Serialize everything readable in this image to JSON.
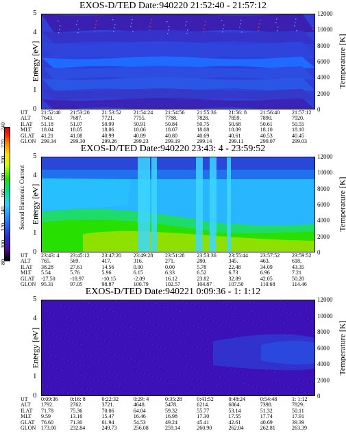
{
  "colorbar": {
    "label": "Second Harmonic Current",
    "ticks": [
      "80",
      "100",
      "120",
      "140",
      "160",
      "180",
      "200",
      "220",
      "240"
    ]
  },
  "chart_data": [
    {
      "type": "heatmap",
      "title": "EXOS-D/TED   Date:940220  21:52:40 - 21:57:12",
      "ylabel": "Energy [eV]",
      "y2label": "Temperature [K]",
      "ylim": [
        0,
        5
      ],
      "y2lim": [
        0,
        12000
      ],
      "yticks": [
        "0",
        "1",
        "2",
        "3",
        "4",
        "5"
      ],
      "y2ticks": [
        "0",
        "2000",
        "4000",
        "6000",
        "8000",
        "10000",
        "12000"
      ],
      "dominant_color": "#2f3fd8",
      "ephemeris": {
        "labels": [
          "UT",
          "ALT",
          "ILAT",
          "MLT",
          "GLAT",
          "GLON"
        ],
        "columns": [
          [
            "21:52:40",
            "7643.",
            "51.18",
            "18.04",
            "41.21",
            "299.34"
          ],
          [
            "21:53:20",
            "7687.",
            "51.07",
            "18.05",
            "41.08",
            "299.30"
          ],
          [
            "21:53:52",
            "7721.",
            "50.99",
            "18.06",
            "40.99",
            "299.26"
          ],
          [
            "21:54:24",
            "7755.",
            "50.91",
            "18.06",
            "40.89",
            "299.23"
          ],
          [
            "21:54:56",
            "7788.",
            "50.84",
            "18.07",
            "40.80",
            "299.19"
          ],
          [
            "21:55:36",
            "7828.",
            "50.75",
            "18.08",
            "40.69",
            "299.14"
          ],
          [
            "21:56: 8",
            "7859.",
            "50.68",
            "18.09",
            "40.61",
            "299.11"
          ],
          [
            "21:56:40",
            "7890.",
            "50.61",
            "18.10",
            "40.53",
            "299.07"
          ],
          [
            "21:57:12",
            "7920.",
            "50.55",
            "18.10",
            "40.45",
            "299.03"
          ]
        ]
      }
    },
    {
      "type": "heatmap",
      "title": "EXOS-D/TED   Date:940220  23:43: 4 - 23:59:52",
      "ylabel": "Energy [eV]",
      "y2label": "Temperature [K]",
      "ylim": [
        0,
        5
      ],
      "y2lim": [
        0,
        12000
      ],
      "yticks": [
        "0",
        "1",
        "2",
        "3",
        "4",
        "5"
      ],
      "y2ticks": [
        "0",
        "2000",
        "4000",
        "6000",
        "8000",
        "10000",
        "12000"
      ],
      "dominant_color": "#27b6ff",
      "ephemeris": {
        "labels": [
          "UT",
          "ALT",
          "ILAT",
          "MLT",
          "GLAT",
          "GLON"
        ],
        "columns": [
          [
            "23:43: 4",
            "765.",
            "38.28",
            "5.54",
            "-27.50",
            "95.31"
          ],
          [
            "23:45:12",
            "569.",
            "27.61",
            "5.76",
            "-18.97",
            "97.05"
          ],
          [
            "23:47:20",
            "417.",
            "14.56",
            "5.96",
            "-10.15",
            "98.87"
          ],
          [
            "23:49:28",
            "316.",
            "0.00",
            "6.15",
            "-2.09",
            "100.79"
          ],
          [
            "23:51:28",
            "271.",
            "0.00",
            "6.33",
            "16.12",
            "102.57"
          ],
          [
            "23:53:36",
            "280.",
            "5.78",
            "6.52",
            "23.82",
            "104.87"
          ],
          [
            "23:55:44",
            "345.",
            "22.48",
            "6.73",
            "32.89",
            "107.50"
          ],
          [
            "23:57:52",
            "463.",
            "34.09",
            "6.96",
            "42.05",
            "110.68"
          ],
          [
            "23:59:52",
            "618.",
            "43.35",
            "7.21",
            "50.20",
            "114.46"
          ]
        ]
      }
    },
    {
      "type": "heatmap",
      "title": "EXOS-D/TED   Date:940221  0:09:36 - 1: 1:12",
      "ylabel": "Energy [eV]",
      "y2label": "Temperature [K]",
      "ylim": [
        0,
        5
      ],
      "y2lim": [
        0,
        12000
      ],
      "yticks": [
        "0",
        "1",
        "2",
        "3",
        "4",
        "5"
      ],
      "y2ticks": [
        "0",
        "2000",
        "4000",
        "6000",
        "8000",
        "10000",
        "12000"
      ],
      "dominant_color": "#3c12b8",
      "ephemeris": {
        "labels": [
          "UT",
          "ALT",
          "ILAT",
          "MLT",
          "GLAT",
          "GLON"
        ],
        "columns": [
          [
            "0:09:36",
            "1792.",
            "71.78",
            "9.59",
            "76.60",
            "173.00"
          ],
          [
            "0:16: 8",
            "2762.",
            "75.36",
            "13.16",
            "71.30",
            "232.84"
          ],
          [
            "0:22:32",
            "3721.",
            "70.06",
            "15.47",
            "61.94",
            "249.73"
          ],
          [
            "0:29: 4",
            "4648.",
            "64.04",
            "16.46",
            "54.53",
            "256.08"
          ],
          [
            "0:35:28",
            "5478.",
            "59.32",
            "16.98",
            "49.24",
            "259.14"
          ],
          [
            "0:41:52",
            "6214.",
            "55.77",
            "17.30",
            "45.41",
            "260.90"
          ],
          [
            "0:48:24",
            "6864.",
            "53.14",
            "17.55",
            "42.61",
            "262.04"
          ],
          [
            "0:54:48",
            "7398.",
            "51.32",
            "17.74",
            "40.69",
            "262.81"
          ],
          [
            "1: 1:12",
            "7829.",
            "50.11",
            "17.91",
            "39.39",
            "263.39"
          ]
        ]
      }
    }
  ]
}
